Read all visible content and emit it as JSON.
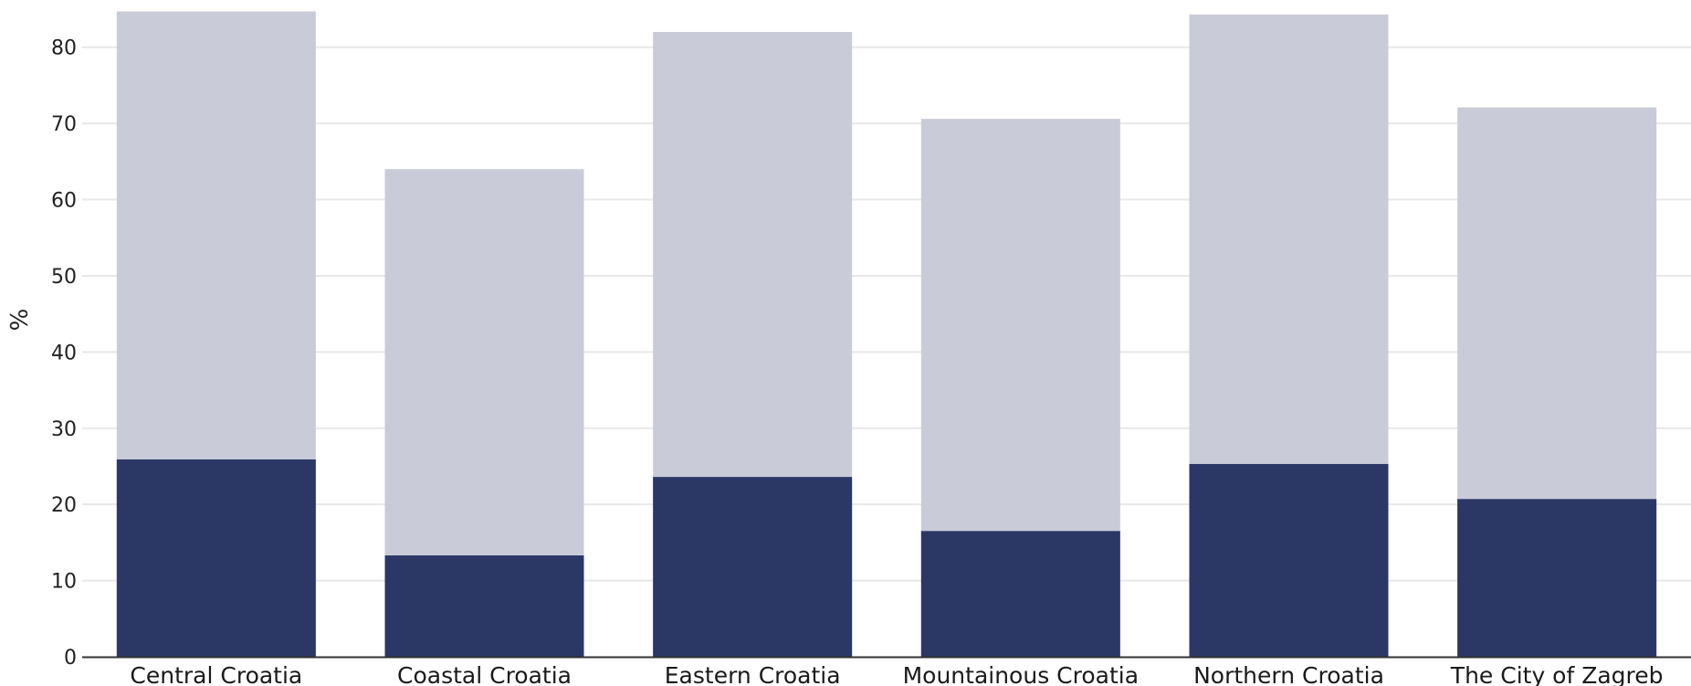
{
  "chart_data": {
    "type": "bar",
    "stacked": false,
    "overlay": true,
    "title": "",
    "xlabel": "",
    "ylabel": "%",
    "ylim": [
      0,
      85
    ],
    "yticks": [
      0,
      10,
      20,
      30,
      40,
      50,
      60,
      70,
      80
    ],
    "grid": true,
    "categories": [
      "Central Croatia",
      "Coastal Croatia",
      "Eastern Croatia",
      "Mountainous Croatia",
      "Northern Croatia",
      "The City of Zagreb"
    ],
    "series": [
      {
        "color": "#c9cbd8",
        "values": [
          84.7,
          64.0,
          82.0,
          70.6,
          84.3,
          72.1
        ]
      },
      {
        "color": "#2b3765",
        "values": [
          25.9,
          13.3,
          23.6,
          16.5,
          25.3,
          20.7
        ]
      }
    ],
    "colors": {
      "gridline": "#e8e8e8",
      "axis": "#333333"
    }
  }
}
